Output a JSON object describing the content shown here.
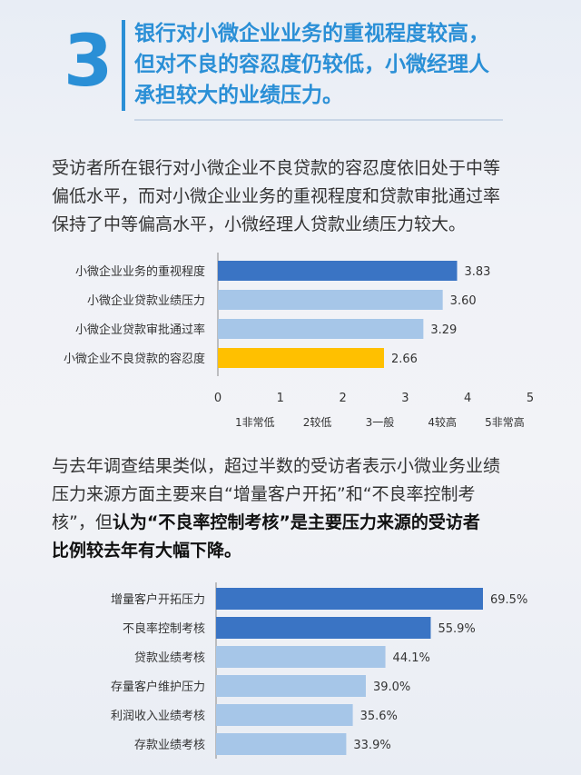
{
  "header": {
    "number": "3",
    "headline_lines": [
      "银行对小微企业业务的重视程度较高，",
      "但对不良的容忍度仍较低，小微经理人",
      "承担较大的业绩压力。"
    ]
  },
  "para1": {
    "lines": [
      "受访者所在银行对小微企业不良贷款的容忍度依旧处于中等",
      "偏低水平，而对小微企业业务的重视程度和贷款审批通过率",
      "保持了中等偏高水平，小微经理人贷款业绩压力较大。"
    ]
  },
  "para2": {
    "line1": "与去年调查结果类似，超过半数的受访者表示小微业务业绩",
    "line2": "压力来源方面主要来自“增量客户开拓”和“不良率控制考",
    "line3_normal": "核”，但",
    "line3_bold": "认为“不良率控制考核”是主要压力来源的受访者",
    "line4_bold": "比例较去年有大幅下降。"
  },
  "colors": {
    "accent": "#2a8fd6",
    "dark_bar": "#3a74c4",
    "light_bar": "#a6c6e8",
    "yellow_bar": "#ffc000"
  },
  "chart_data": [
    {
      "type": "bar",
      "orientation": "horizontal",
      "categories": [
        "小微企业业务的重视程度",
        "小微企业贷款业绩压力",
        "小微企业贷款审批通过率",
        "小微企业不良贷款的容忍度"
      ],
      "values": [
        3.83,
        3.6,
        3.29,
        2.66
      ],
      "value_labels": [
        "3.83",
        "3.60",
        "3.29",
        "2.66"
      ],
      "bar_colors": [
        "#3a74c4",
        "#a6c6e8",
        "#a6c6e8",
        "#ffc000"
      ],
      "xlim": [
        0,
        5
      ],
      "xticks": [
        "0",
        "1",
        "2",
        "3",
        "4",
        "5"
      ],
      "scale_labels": [
        "1非常低",
        "2较低",
        "3一般",
        "4较高",
        "5非常高"
      ],
      "grid": false
    },
    {
      "type": "bar",
      "orientation": "horizontal",
      "categories": [
        "增量客户开拓压力",
        "不良率控制考核",
        "贷款业绩考核",
        "存量客户维护压力",
        "利润收入业绩考核",
        "存款业绩考核"
      ],
      "values": [
        69.5,
        55.9,
        44.1,
        39.0,
        35.6,
        33.9
      ],
      "value_labels": [
        "69.5%",
        "55.9%",
        "44.1%",
        "39.0%",
        "35.6%",
        "33.9%"
      ],
      "bar_colors": [
        "#3a74c4",
        "#3a74c4",
        "#a6c6e8",
        "#a6c6e8",
        "#a6c6e8",
        "#a6c6e8"
      ],
      "grid": false
    }
  ]
}
